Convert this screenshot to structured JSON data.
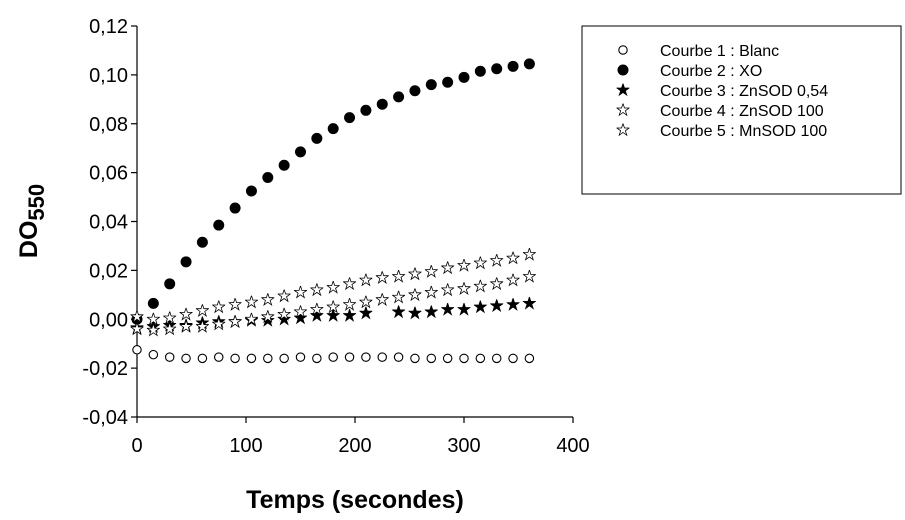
{
  "chart_data": {
    "type": "scatter",
    "xlabel": "Temps (secondes)",
    "ylabel_main": "DO",
    "ylabel_sub": "550",
    "xlim": [
      0,
      400
    ],
    "ylim": [
      -0.04,
      0.12
    ],
    "xticks": [
      0,
      100,
      200,
      300,
      400
    ],
    "xtick_labels": [
      "0",
      "100",
      "200",
      "300",
      "400"
    ],
    "yticks": [
      -0.04,
      -0.02,
      0,
      0.02,
      0.04,
      0.06,
      0.08,
      0.1,
      0.12
    ],
    "ytick_labels": [
      "-0,04",
      "-0,02",
      "0,00",
      "0,02",
      "0,04",
      "0,06",
      "0,08",
      "0,10",
      "0,12"
    ],
    "grid": false,
    "legend_position": "top-right",
    "series": [
      {
        "name": "Courbe 1 : Blanc",
        "marker": "open-circle",
        "x": [
          0,
          15,
          30,
          45,
          60,
          75,
          90,
          105,
          120,
          135,
          150,
          165,
          180,
          195,
          210,
          225,
          240,
          255,
          270,
          285,
          300,
          315,
          330,
          345,
          360
        ],
        "y": [
          -0.0125,
          -0.0145,
          -0.0155,
          -0.016,
          -0.016,
          -0.0155,
          -0.016,
          -0.016,
          -0.016,
          -0.016,
          -0.0155,
          -0.016,
          -0.0155,
          -0.0155,
          -0.0155,
          -0.0155,
          -0.0155,
          -0.016,
          -0.016,
          -0.016,
          -0.016,
          -0.016,
          -0.016,
          -0.016,
          -0.016
        ]
      },
      {
        "name": "Courbe 2 : XO",
        "marker": "filled-circle",
        "x": [
          0,
          15,
          30,
          45,
          60,
          75,
          90,
          105,
          120,
          135,
          150,
          165,
          180,
          195,
          210,
          225,
          240,
          255,
          270,
          285,
          300,
          315,
          330,
          345,
          360
        ],
        "y": [
          0.0,
          0.0065,
          0.0145,
          0.0235,
          0.0315,
          0.0385,
          0.0455,
          0.0525,
          0.058,
          0.063,
          0.0685,
          0.074,
          0.078,
          0.0825,
          0.0855,
          0.088,
          0.091,
          0.0935,
          0.096,
          0.097,
          0.099,
          0.1015,
          0.1025,
          0.1035,
          0.1045
        ]
      },
      {
        "name": "Courbe 3 : ZnSOD 0,54",
        "marker": "filled-star",
        "x": [
          0,
          15,
          30,
          45,
          60,
          75,
          90,
          105,
          120,
          135,
          150,
          165,
          180,
          195,
          210,
          240,
          255,
          270,
          285,
          300,
          315,
          330,
          345,
          360
        ],
        "y": [
          -0.0035,
          -0.003,
          -0.0025,
          -0.0025,
          -0.0015,
          -0.001,
          -0.001,
          -0.0005,
          -0.0005,
          0.0,
          0.0005,
          0.0015,
          0.0015,
          0.0015,
          0.0025,
          0.003,
          0.0025,
          0.003,
          0.004,
          0.004,
          0.005,
          0.0055,
          0.006,
          0.0065
        ]
      },
      {
        "name": "Courbe 4 : ZnSOD 100",
        "marker": "open-star",
        "x": [
          0,
          15,
          30,
          45,
          60,
          75,
          90,
          105,
          120,
          135,
          150,
          165,
          180,
          195,
          210,
          225,
          240,
          255,
          270,
          285,
          300,
          315,
          330,
          345,
          360
        ],
        "y": [
          -0.004,
          -0.0045,
          -0.004,
          -0.003,
          -0.003,
          -0.002,
          -0.001,
          0.0,
          0.001,
          0.002,
          0.003,
          0.004,
          0.005,
          0.006,
          0.007,
          0.008,
          0.009,
          0.01,
          0.011,
          0.012,
          0.0125,
          0.0135,
          0.0145,
          0.016,
          0.0175
        ]
      },
      {
        "name": "Courbe 5 : MnSOD 100",
        "marker": "open-star",
        "x": [
          0,
          15,
          30,
          45,
          60,
          75,
          90,
          105,
          120,
          135,
          150,
          165,
          180,
          195,
          210,
          225,
          240,
          255,
          270,
          285,
          300,
          315,
          330,
          345,
          360
        ],
        "y": [
          0.001,
          0.0,
          0.0005,
          0.002,
          0.0035,
          0.005,
          0.006,
          0.007,
          0.008,
          0.0095,
          0.011,
          0.012,
          0.013,
          0.0145,
          0.016,
          0.017,
          0.0175,
          0.0185,
          0.0195,
          0.021,
          0.022,
          0.023,
          0.024,
          0.025,
          0.0265
        ]
      }
    ]
  }
}
